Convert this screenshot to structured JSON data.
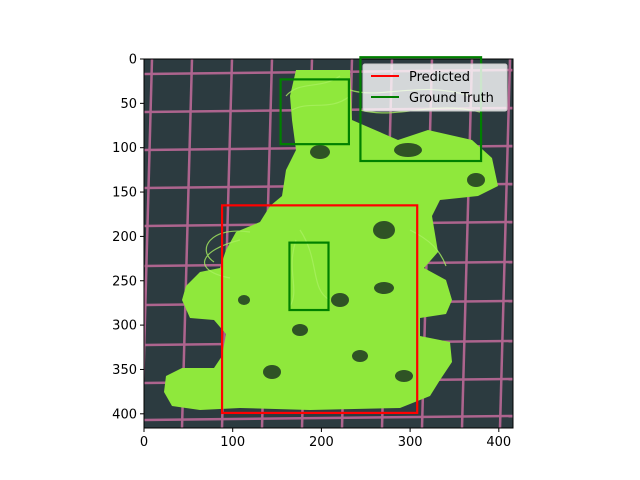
{
  "chart_data": {
    "type": "image-with-bounding-boxes",
    "title": "",
    "xlabel": "",
    "ylabel": "",
    "xlim": [
      0,
      416
    ],
    "ylim": [
      416,
      0
    ],
    "y_inverted": true,
    "xticks": [
      0,
      100,
      200,
      300,
      400
    ],
    "yticks": [
      0,
      50,
      100,
      150,
      200,
      250,
      300,
      350,
      400
    ],
    "image_description": "3D-printed lime-green plastic part with stringing, on a dark cutting mat with pink grid lines",
    "colors": {
      "predicted": "#ff0000",
      "ground_truth": "#008000",
      "part": "#8fe83c",
      "mat": "#2a3a3e",
      "grid": "#c26a9a"
    },
    "legend": {
      "position": "upper right",
      "entries": [
        {
          "label": "Predicted",
          "color": "#ff0000"
        },
        {
          "label": "Ground Truth",
          "color": "#008000"
        }
      ]
    },
    "boxes": [
      {
        "series": "Predicted",
        "x0": 88,
        "y0": 165,
        "x1": 308,
        "y1": 399
      },
      {
        "series": "Ground Truth",
        "x0": 154,
        "y0": 23,
        "x1": 231,
        "y1": 96
      },
      {
        "series": "Ground Truth",
        "x0": 244,
        "y0": -2,
        "x1": 380,
        "y1": 115
      },
      {
        "series": "Ground Truth",
        "x0": 164,
        "y0": 207,
        "x1": 208,
        "y1": 283
      }
    ]
  }
}
